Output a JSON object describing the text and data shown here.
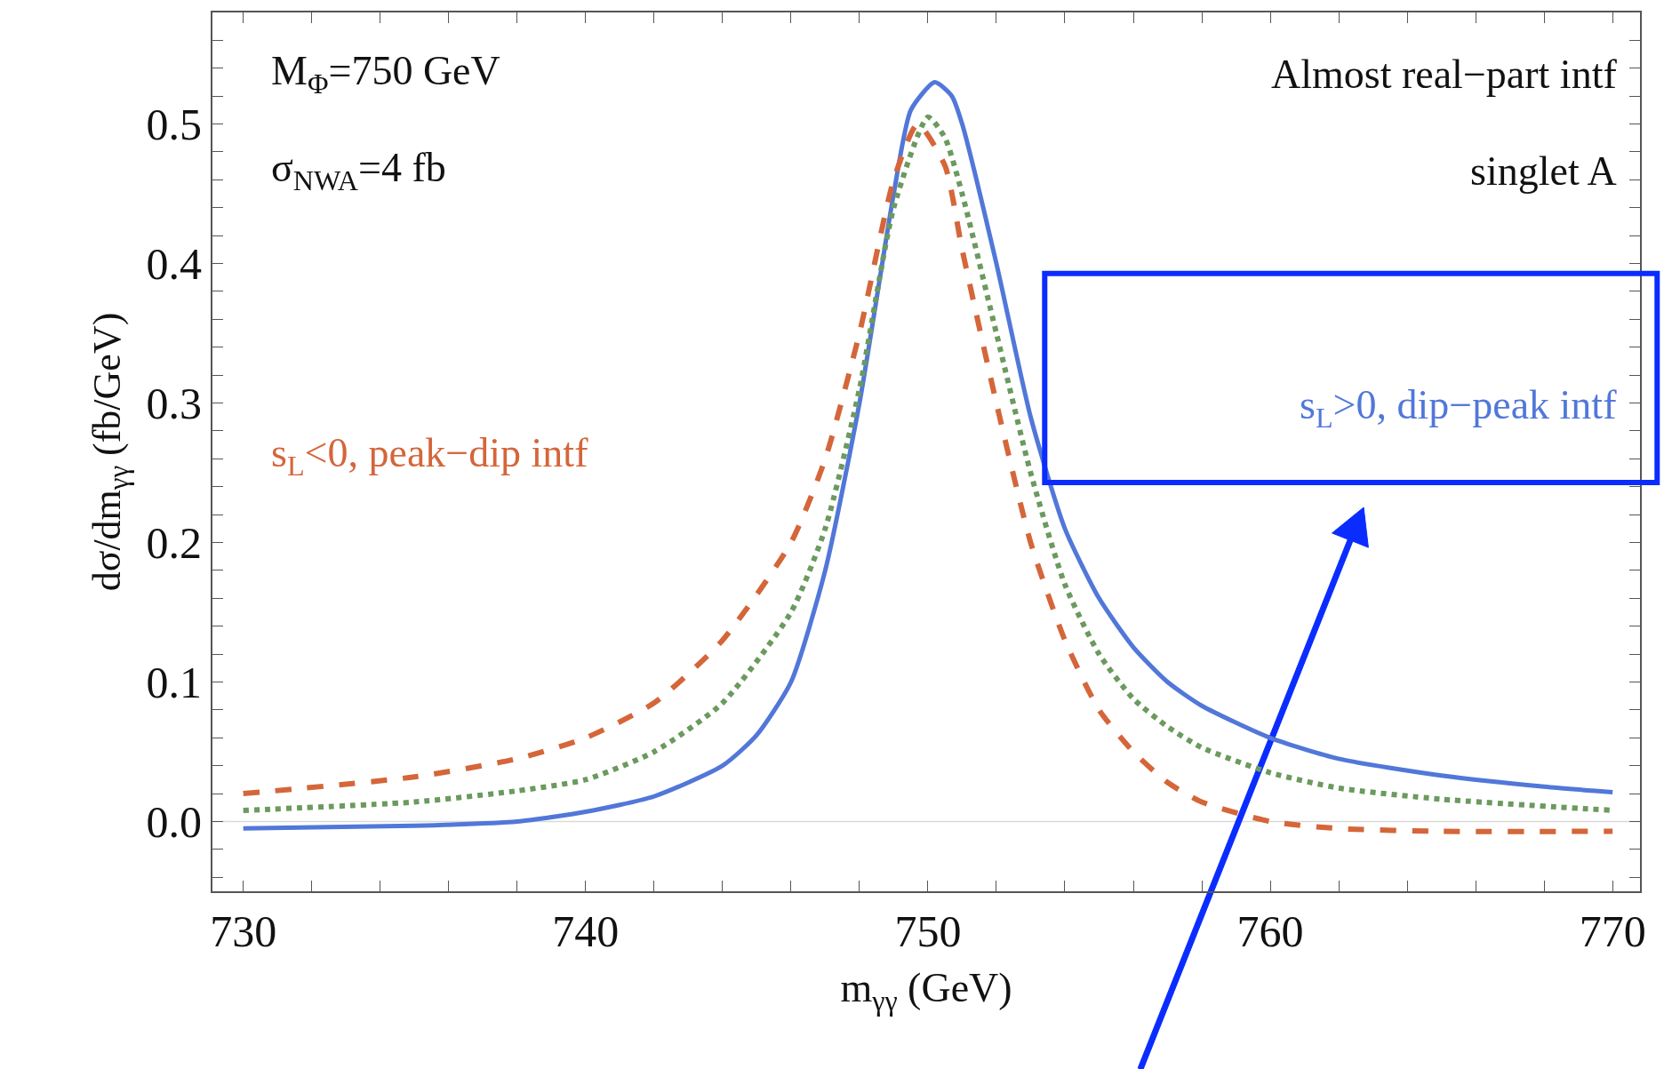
{
  "chart_data": {
    "type": "line",
    "xlabel": "m$_{γγ}$ (GeV)",
    "ylabel": "dσ/dm$_{γγ}$ (fb/GeV)",
    "annotations": [
      "M$_{Φ}$=750 GeV",
      "σ$_{NWA}$=4 fb",
      "Almost real−part intf",
      "singlet A"
    ],
    "xlim": [
      729.1,
      770.8
    ],
    "ylim": [
      -0.05,
      0.58
    ],
    "xticks": [
      730,
      740,
      750,
      760,
      770,
      {
        "value": 732,
        "label": null
      },
      {
        "value": 734,
        "label": null
      },
      {
        "value": 736,
        "label": null
      },
      {
        "value": 738,
        "label": null
      },
      {
        "value": 742,
        "label": null
      },
      {
        "value": 744,
        "label": null
      },
      {
        "value": 746,
        "label": null
      },
      {
        "value": 748,
        "label": null
      },
      {
        "value": 752,
        "label": null
      },
      {
        "value": 754,
        "label": null
      },
      {
        "value": 756,
        "label": null
      },
      {
        "value": 758,
        "label": null
      },
      {
        "value": 762,
        "label": null
      },
      {
        "value": 764,
        "label": null
      },
      {
        "value": 766,
        "label": null
      },
      {
        "value": 768,
        "label": null
      }
    ],
    "yticks": [
      {
        "value": 0,
        "label": "0.0"
      },
      0.1,
      0.2,
      0.3,
      0.4,
      0.5,
      {
        "value": -0.04,
        "label": null
      },
      {
        "value": -0.02,
        "label": null
      },
      {
        "value": 0.02,
        "label": null
      },
      {
        "value": 0.04,
        "label": null
      },
      {
        "value": 0.06,
        "label": null
      },
      {
        "value": 0.08,
        "label": null
      },
      {
        "value": 0.12,
        "label": null
      },
      {
        "value": 0.14,
        "label": null
      },
      {
        "value": 0.16,
        "label": null
      },
      {
        "value": 0.18,
        "label": null
      },
      {
        "value": 0.22,
        "label": null
      },
      {
        "value": 0.24,
        "label": null
      },
      {
        "value": 0.26,
        "label": null
      },
      {
        "value": 0.28,
        "label": null
      },
      {
        "value": 0.32,
        "label": null
      },
      {
        "value": 0.34,
        "label": null
      },
      {
        "value": 0.36,
        "label": null
      },
      {
        "value": 0.38,
        "label": null
      },
      {
        "value": 0.42,
        "label": null
      },
      {
        "value": 0.44,
        "label": null
      },
      {
        "value": 0.46,
        "label": null
      },
      {
        "value": 0.48,
        "label": null
      },
      {
        "value": 0.52,
        "label": null
      },
      {
        "value": 0.54,
        "label": null
      },
      {
        "value": 0.56,
        "label": null
      }
    ],
    "grid": false,
    "legend": false,
    "ref_lines": [
      {
        "axis": "y",
        "value": 0,
        "label": null,
        "color": "#d9d9d9"
      }
    ],
    "series": [
      {
        "name": "s$_{L}$>0, dip−peak intf",
        "color": "#5177d9",
        "line_style": "solid",
        "x": [
          730,
          735,
          738,
          740,
          742,
          744,
          745,
          746,
          747,
          748,
          749,
          749.5,
          750.2,
          750.7,
          751,
          752,
          753,
          754,
          755,
          756,
          757,
          758,
          760,
          762,
          765,
          768,
          770
        ],
        "values": [
          -0.005,
          -0.003,
          0.0,
          0.007,
          0.018,
          0.04,
          0.062,
          0.1,
          0.18,
          0.3,
          0.45,
          0.51,
          0.53,
          0.52,
          0.5,
          0.4,
          0.29,
          0.21,
          0.16,
          0.125,
          0.1,
          0.083,
          0.06,
          0.045,
          0.033,
          0.025,
          0.021
        ]
      },
      {
        "name": "s$_{L}$<0, peak−dip intf",
        "color": "#d4663a",
        "line_style": "dashed",
        "x": [
          730,
          735,
          738,
          740,
          742,
          744,
          746,
          747,
          748,
          749,
          749.7,
          750.5,
          751,
          752,
          753,
          754,
          755,
          756,
          757,
          758,
          760,
          762,
          765,
          770
        ],
        "values": [
          0.02,
          0.032,
          0.045,
          0.06,
          0.085,
          0.13,
          0.2,
          0.26,
          0.35,
          0.46,
          0.5,
          0.47,
          0.41,
          0.3,
          0.2,
          0.13,
          0.08,
          0.05,
          0.028,
          0.014,
          0.0,
          -0.005,
          -0.007,
          -0.007
        ]
      },
      {
        "color": "#6b9a5e",
        "line_style": "dotted",
        "x": [
          730,
          735,
          738,
          740,
          742,
          744,
          746,
          747,
          748,
          749,
          750,
          750.5,
          751,
          752,
          753,
          754,
          755,
          756,
          757,
          758,
          760,
          762,
          765,
          770
        ],
        "values": [
          0.008,
          0.014,
          0.022,
          0.03,
          0.05,
          0.085,
          0.15,
          0.21,
          0.31,
          0.44,
          0.505,
          0.49,
          0.45,
          0.35,
          0.25,
          0.17,
          0.12,
          0.088,
          0.068,
          0.053,
          0.035,
          0.024,
          0.016,
          0.008
        ]
      }
    ]
  }
}
